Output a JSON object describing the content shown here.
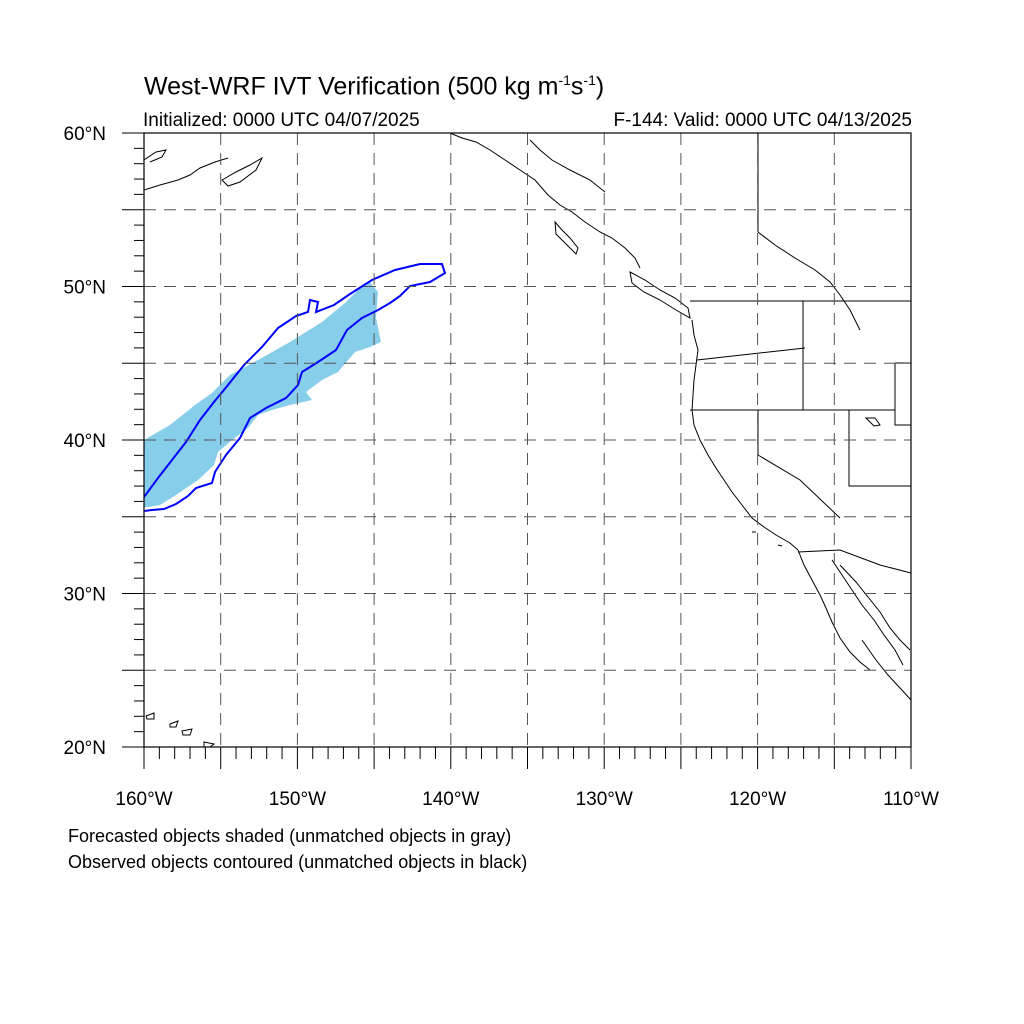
{
  "title": {
    "main": "West-WRF IVT Verification (500 kg m",
    "sup1": "-1",
    "mid": "s",
    "sup2": "-1",
    "end": ")"
  },
  "initialized": "Initialized: 0000 UTC 04/07/2025",
  "valid": "F-144: Valid: 0000 UTC 04/13/2025",
  "legend": {
    "forecast_note": "Forecasted objects shaded (unmatched objects in gray)",
    "observed_note": "Observed objects contoured (unmatched objects in black)"
  },
  "map": {
    "lon_range": [
      -160,
      -110
    ],
    "lat_range": [
      20,
      60
    ],
    "lat_labels": [
      "20°N",
      "30°N",
      "40°N",
      "50°N",
      "60°N"
    ],
    "lon_labels": [
      "160°W",
      "150°W",
      "140°W",
      "130°W",
      "120°W",
      "110°W"
    ],
    "forecast_color": "#87ceeb",
    "observed_color": "#0000ff",
    "coast_color": "#000000"
  }
}
